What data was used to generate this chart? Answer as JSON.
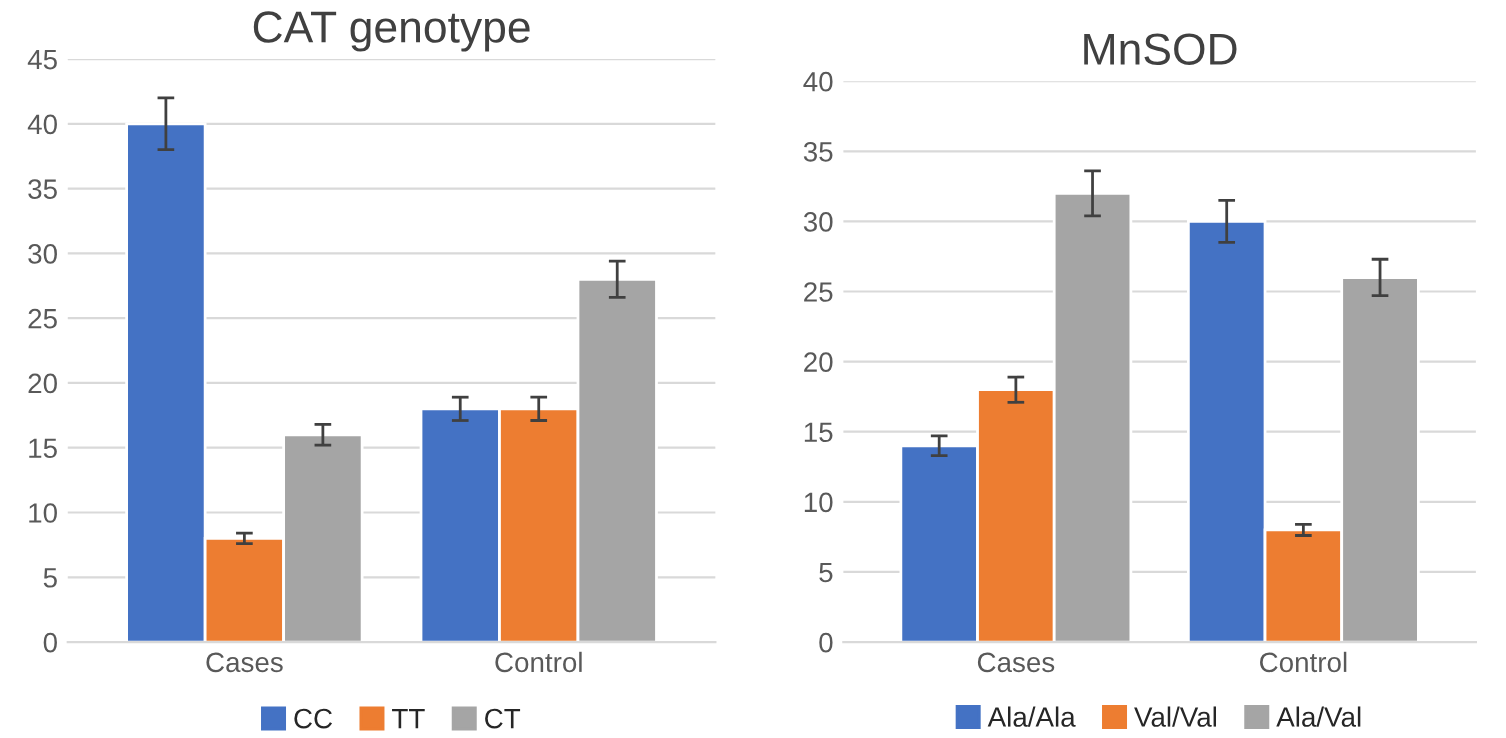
{
  "chart_data": [
    {
      "type": "bar",
      "title": "CAT genotype",
      "categories": [
        "Cases",
        "Control"
      ],
      "ylim": [
        0,
        45
      ],
      "yticks": [
        0,
        5,
        10,
        15,
        20,
        25,
        30,
        35,
        40,
        45
      ],
      "grid": "y",
      "legend": "bottom",
      "series": [
        {
          "name": "CC",
          "color": "#4472c4",
          "values": [
            40,
            18
          ],
          "errors": [
            2,
            0.9
          ]
        },
        {
          "name": "TT",
          "color": "#ed7d31",
          "values": [
            8,
            18
          ],
          "errors": [
            0.4,
            0.9
          ]
        },
        {
          "name": "CT",
          "color": "#a5a5a5",
          "values": [
            16,
            28
          ],
          "errors": [
            0.8,
            1.4
          ]
        }
      ]
    },
    {
      "type": "bar",
      "title": "MnSOD",
      "categories": [
        "Cases",
        "Control"
      ],
      "ylim": [
        0,
        40
      ],
      "yticks": [
        0,
        5,
        10,
        15,
        20,
        25,
        30,
        35,
        40
      ],
      "grid": "y",
      "legend": "bottom",
      "series": [
        {
          "name": "Ala/Ala",
          "color": "#4472c4",
          "values": [
            14,
            30
          ],
          "errors": [
            0.7,
            1.5
          ]
        },
        {
          "name": "Val/Val",
          "color": "#ed7d31",
          "values": [
            18,
            8
          ],
          "errors": [
            0.9,
            0.4
          ]
        },
        {
          "name": "Ala/Val",
          "color": "#a5a5a5",
          "values": [
            32,
            26
          ],
          "errors": [
            1.6,
            1.3
          ]
        }
      ]
    }
  ]
}
